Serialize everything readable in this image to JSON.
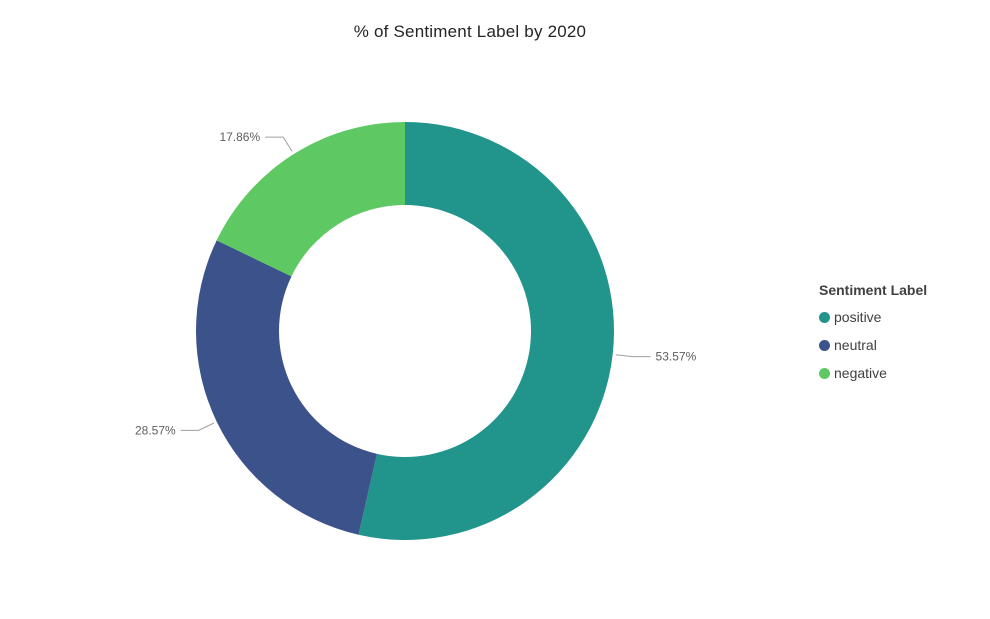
{
  "chart_data": {
    "type": "pie",
    "title": "% of Sentiment Label by 2020",
    "legend_title": "Sentiment Label",
    "legend_position": "right",
    "donut": true,
    "slices": [
      {
        "name": "positive",
        "value": 53.57,
        "label": "53.57%",
        "color": "#21948b"
      },
      {
        "name": "neutral",
        "value": 28.57,
        "label": "28.57%",
        "color": "#3c528a"
      },
      {
        "name": "negative",
        "value": 17.86,
        "label": "17.86%",
        "color": "#5ec962"
      }
    ]
  }
}
